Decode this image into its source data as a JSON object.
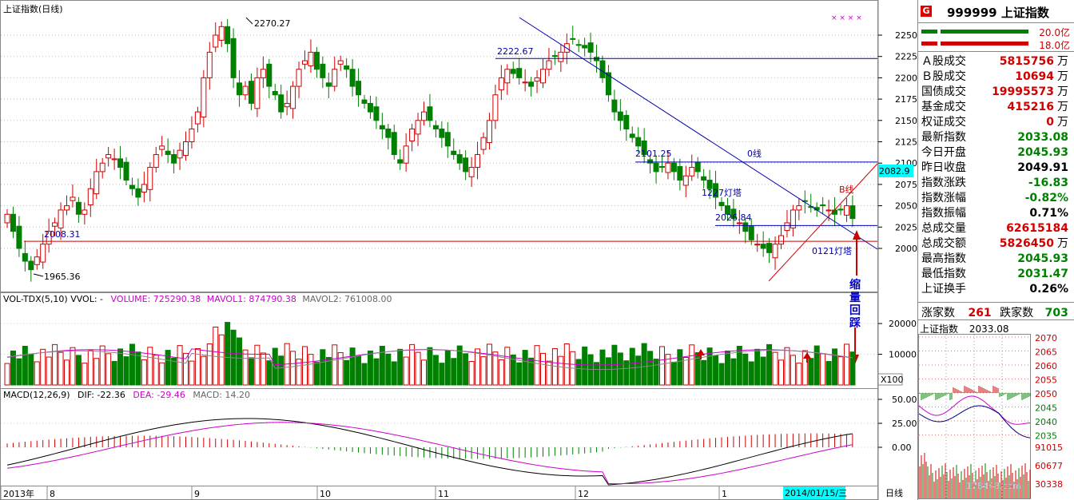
{
  "main_chart": {
    "title": "上证指数(日线)",
    "y_axis_labels": [
      "2250",
      "2225",
      "2200",
      "2175",
      "2150",
      "2125",
      "2100",
      "2075",
      "2050",
      "2025",
      "2000"
    ],
    "current_price_tag": "2082.9",
    "x_axis_labels": [
      "2013年",
      "8",
      "9",
      "10",
      "11",
      "12",
      "1"
    ],
    "date_tag": "2014/01/15/三",
    "period_tag": "日线",
    "annotations": {
      "high": "2270.27",
      "low": "1965.36",
      "level_2222": "2222.67",
      "level_2101": "2101.25",
      "level_2026": "2026.84",
      "level_2008": "2008.31",
      "zero_line": "0线",
      "b_line": "B线",
      "lighthouse_1227": "1227灯塔",
      "lighthouse_0121": "0121灯塔",
      "volume_note": "缩量回踩"
    }
  },
  "volume_panel": {
    "label": "VOL-TDX(5,10)",
    "vvol": "VVOL: -",
    "volume_text": "VOLUME: 725290.38",
    "mavol1_text": "MAVOL1: 874790.38",
    "mavol2_text": "MAVOL2: 761008.00",
    "y_labels": [
      "20000",
      "10000"
    ],
    "scale_tag": "X100"
  },
  "macd_panel": {
    "label": "MACD(12,26,9)",
    "dif_text": "DIF: -22.36",
    "dea_text": "DEA: -29.46",
    "macd_text": "MACD: 14.20",
    "y_labels": [
      "50.00",
      "25.00",
      "0.00"
    ]
  },
  "sidebar": {
    "icon_letter": "G",
    "code_title": "999999 上证指数",
    "bar1_value": "20.0亿",
    "bar2_value": "18.0亿",
    "rows": [
      {
        "k": "Ａ股成交",
        "v": "5815756",
        "u": "万",
        "c": "red"
      },
      {
        "k": "Ｂ股成交",
        "v": "10694",
        "u": "万",
        "c": "red"
      },
      {
        "k": "国债成交",
        "v": "19995573",
        "u": "万",
        "c": "red"
      },
      {
        "k": "基金成交",
        "v": "415216",
        "u": "万",
        "c": "red"
      },
      {
        "k": "权证成交",
        "v": "0",
        "u": "万",
        "c": "red"
      },
      {
        "k": "最新指数",
        "v": "2033.08",
        "u": "",
        "c": "grn"
      },
      {
        "k": "今日开盘",
        "v": "2045.93",
        "u": "",
        "c": "grn"
      },
      {
        "k": "昨日收盘",
        "v": "2049.91",
        "u": "",
        "c": "blk"
      },
      {
        "k": "指数涨跌",
        "v": "-16.83",
        "u": "",
        "c": "grn"
      },
      {
        "k": "指数涨幅",
        "v": "-0.82%",
        "u": "",
        "c": "grn"
      },
      {
        "k": "指数振幅",
        "v": "0.71%",
        "u": "",
        "c": "blk"
      },
      {
        "k": "总成交量",
        "v": "62615184",
        "u": "",
        "c": "red"
      },
      {
        "k": "总成交额",
        "v": "5826450",
        "u": "万",
        "c": "red"
      },
      {
        "k": "最高指数",
        "v": "2045.93",
        "u": "",
        "c": "grn"
      },
      {
        "k": "最低指数",
        "v": "2031.47",
        "u": "",
        "c": "grn"
      },
      {
        "k": "上证换手",
        "v": "0.26%",
        "u": "",
        "c": "blk"
      }
    ],
    "rise_label": "涨家数",
    "rise_count": "261",
    "fall_label": "跌家数",
    "fall_count": "703",
    "mini_title": "上证指数",
    "mini_price": "2033.08",
    "mini_y_labels": [
      "2070",
      "2065",
      "2060",
      "2055",
      "2050",
      "2045",
      "2040",
      "2035"
    ],
    "mini_vol_labels": [
      "91015",
      "60677",
      "30338"
    ],
    "watermark": "178448.com"
  },
  "colors": {
    "up": "#d00000",
    "down": "#008000",
    "trend": "#0000aa",
    "support": "#cc0000",
    "tag_bg": "#00ffff"
  }
}
